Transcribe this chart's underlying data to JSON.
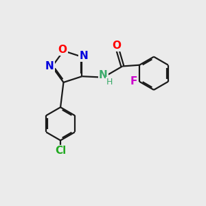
{
  "bg_color": "#ebebeb",
  "bond_color": "#1a1a1a",
  "bond_width": 1.6,
  "atom_labels": {
    "O_furazan": {
      "color": "#ff0000",
      "fontsize": 11
    },
    "N_furazan1": {
      "color": "#0000dd",
      "fontsize": 11
    },
    "N_furazan2": {
      "color": "#0000dd",
      "fontsize": 11
    },
    "N_amide": {
      "color": "#3aaa6a",
      "fontsize": 11
    },
    "H_amide": {
      "color": "#3aaa6a",
      "fontsize": 9
    },
    "O_carbonyl": {
      "color": "#ff0000",
      "fontsize": 11
    },
    "F": {
      "color": "#cc00cc",
      "fontsize": 11
    },
    "Cl": {
      "color": "#22aa22",
      "fontsize": 11
    }
  },
  "xlim": [
    0,
    10
  ],
  "ylim": [
    0,
    10
  ]
}
